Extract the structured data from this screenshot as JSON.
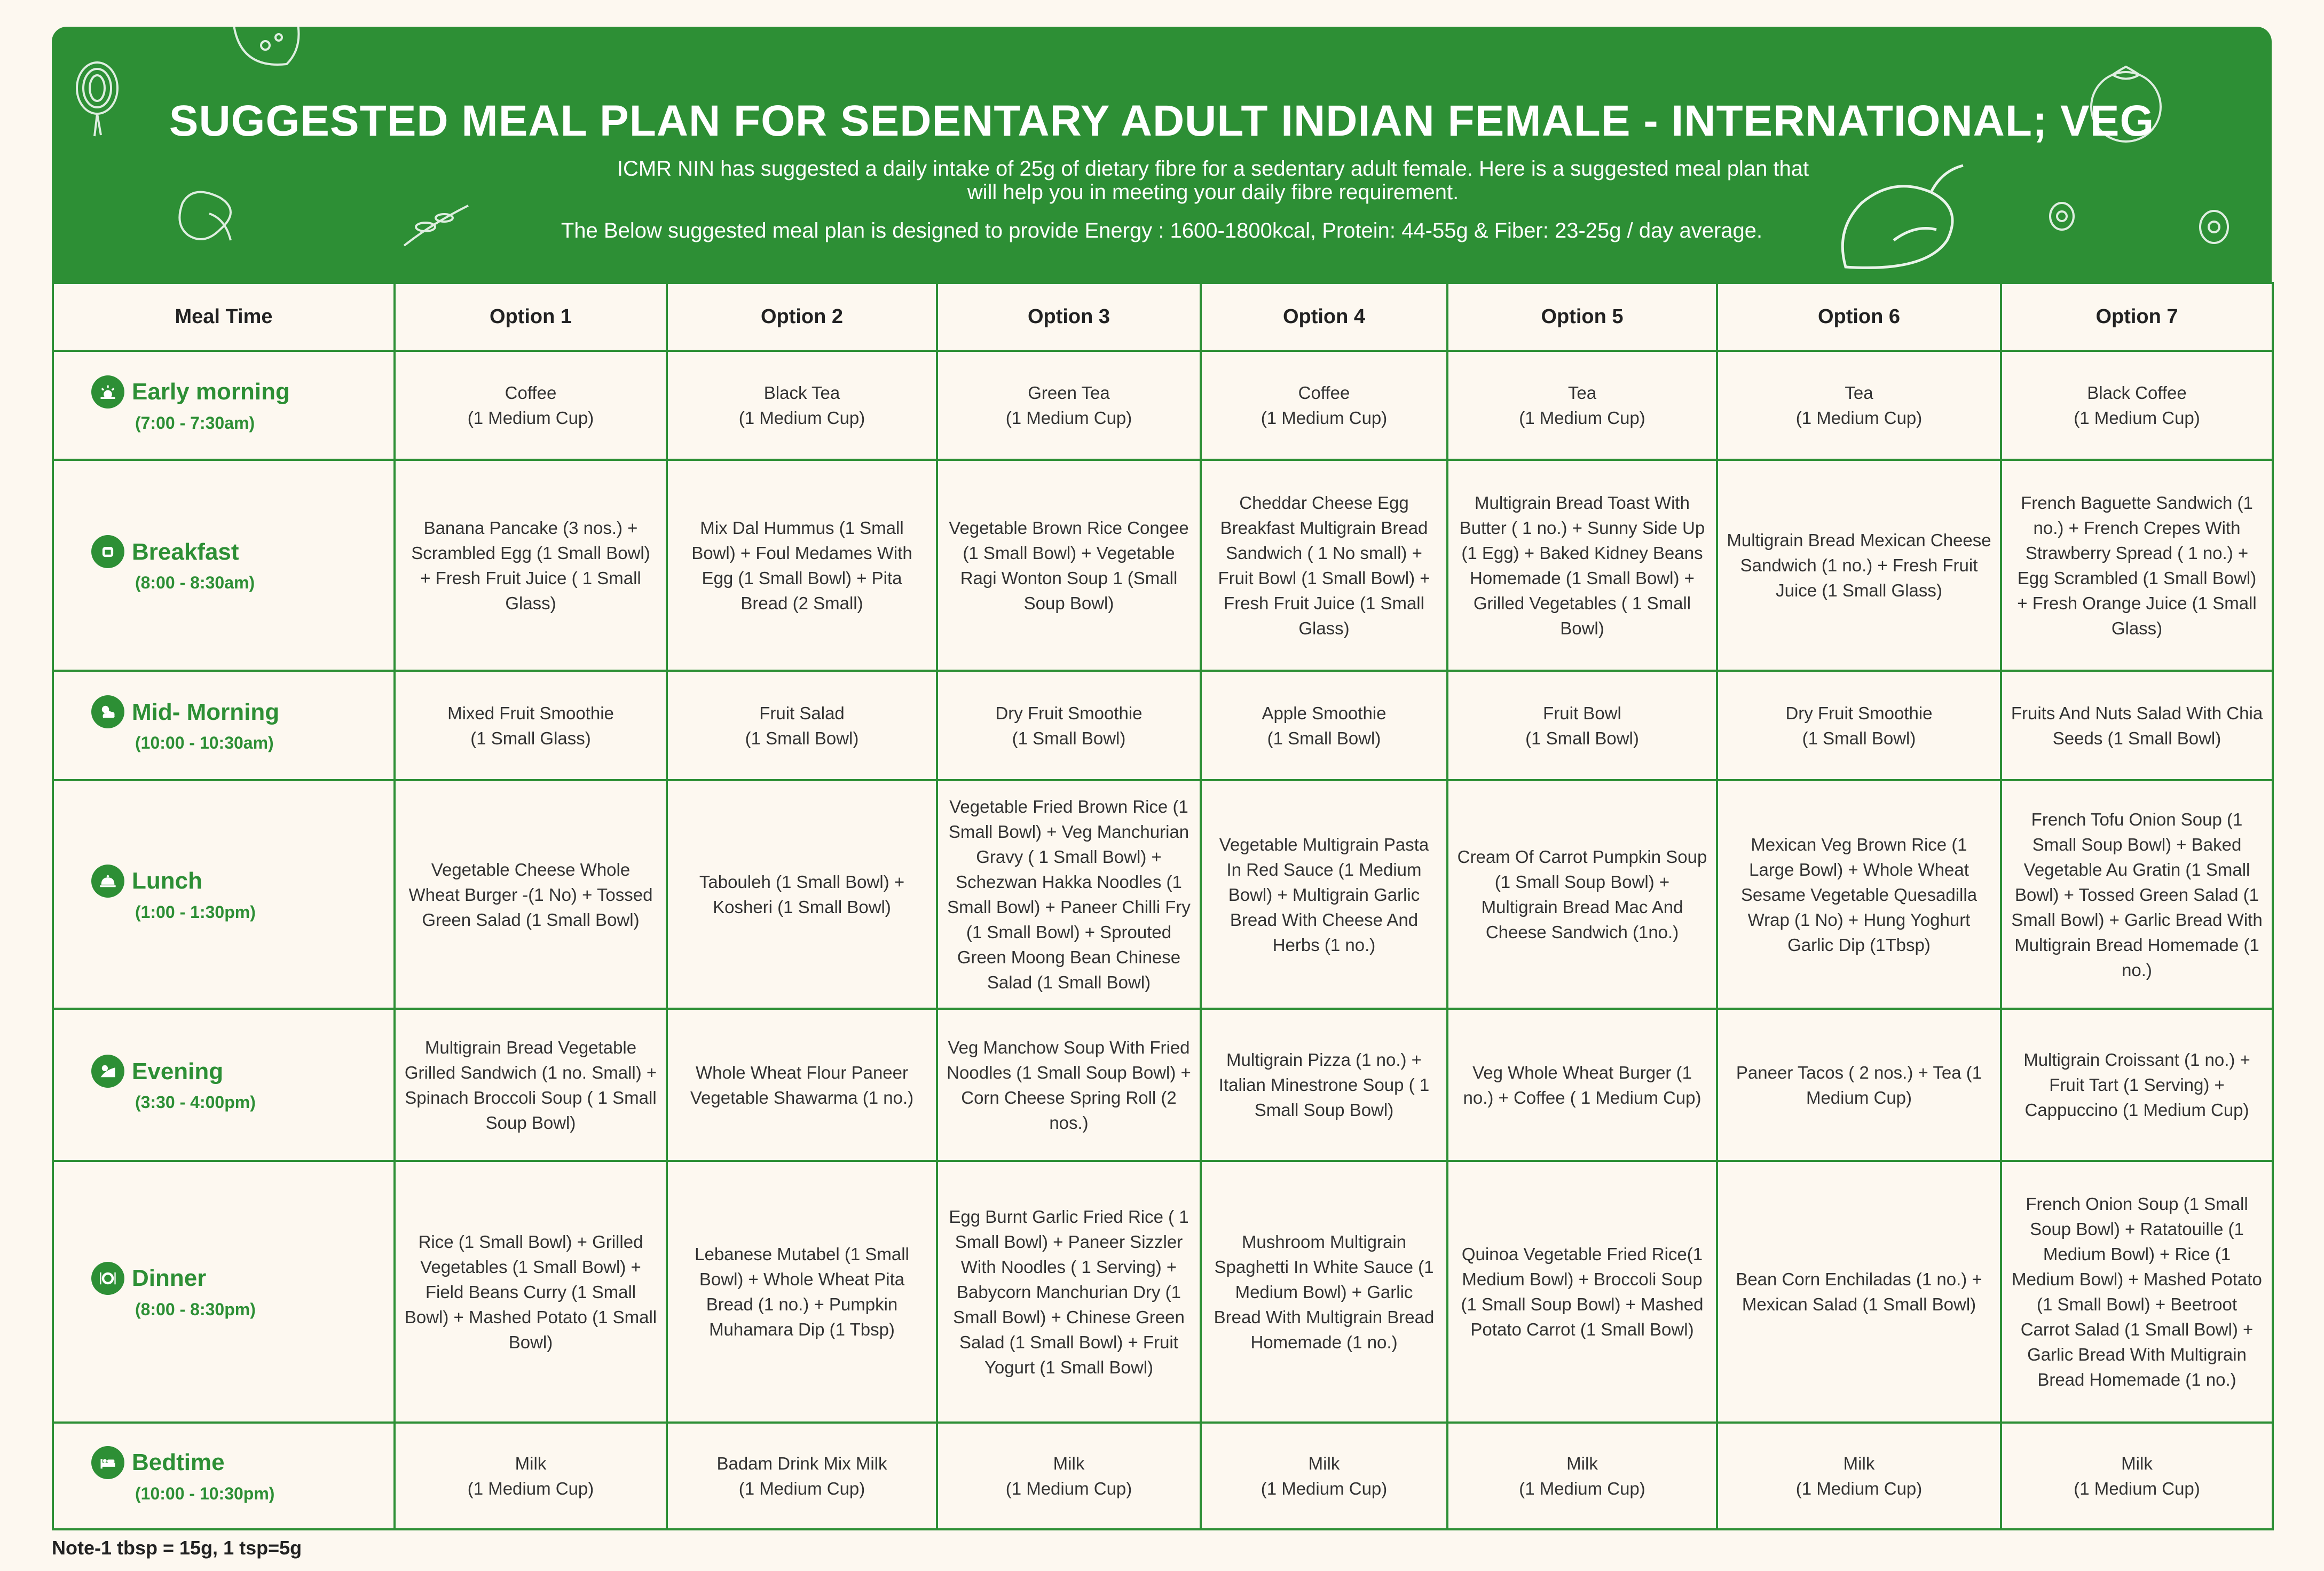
{
  "header": {
    "title": "SUGGESTED  MEAL PLAN FOR SEDENTARY ADULT INDIAN FEMALE -  INTERNATIONAL; VEG",
    "subtitle": "ICMR NIN has suggested a daily intake of 25g of dietary fibre for a sedentary adult female. Here is a suggested meal plan that will help you in meeting your daily fibre requirement.",
    "energy_note": "The Below suggested meal plan is designed to provide Energy : 1600-1800kcal, Protein: 44-55g & Fiber: 23-25g / day average."
  },
  "colors": {
    "brand_green": "#2d8f35",
    "background": "#fdf8f0"
  },
  "table": {
    "headers": [
      "Meal Time",
      "Option 1",
      "Option 2",
      "Option 3",
      "Option 4",
      "Option 5",
      "Option 6",
      "Option 7"
    ],
    "rows": [
      {
        "meal": "Early morning",
        "time": "(7:00 - 7:30am)",
        "icon": "sunrise-icon",
        "cells": [
          "Coffee\n(1 Medium Cup)",
          "Black Tea\n(1 Medium Cup)",
          "Green Tea\n(1 Medium Cup)",
          "Coffee\n(1 Medium Cup)",
          "Tea\n(1 Medium Cup)",
          "Tea\n(1 Medium Cup)",
          "Black Coffee\n(1 Medium Cup)"
        ]
      },
      {
        "meal": "Breakfast",
        "time": "(8:00 - 8:30am)",
        "icon": "toast-icon",
        "cells": [
          "Banana Pancake (3 nos.) + Scrambled Egg (1 Small Bowl) + Fresh Fruit Juice ( 1 Small Glass)",
          "Mix Dal Hummus (1 Small Bowl) +  Foul Medames With Egg (1 Small Bowl) + Pita Bread (2 Small)",
          "Vegetable Brown Rice Congee  (1 Small Bowl) + Vegetable Ragi Wonton Soup 1 (Small Soup Bowl)",
          "Cheddar Cheese Egg Breakfast Multigrain Bread Sandwich ( 1 No small) + Fruit Bowl (1 Small Bowl) + Fresh Fruit Juice (1 Small Glass)",
          "Multigrain Bread Toast With Butter ( 1 no.) + Sunny Side Up (1  Egg) + Baked Kidney Beans Homemade (1 Small Bowl) + Grilled Vegetables ( 1 Small Bowl)",
          "Multigrain Bread Mexican Cheese Sandwich (1 no.) + Fresh Fruit Juice (1 Small Glass)",
          "French Baguette Sandwich (1 no.) +  French Crepes With Strawberry Spread ( 1 no.) + Egg Scrambled (1 Small Bowl) +  Fresh Orange Juice (1 Small Glass)"
        ]
      },
      {
        "meal": "Mid- Morning",
        "time": "(10:00 - 10:30am)",
        "icon": "sun-cloud-icon",
        "cells": [
          "Mixed Fruit Smoothie\n(1 Small Glass)",
          "Fruit Salad\n(1 Small Bowl)",
          "Dry Fruit Smoothie\n(1 Small Bowl)",
          "Apple Smoothie\n(1 Small Bowl)",
          "Fruit Bowl\n(1 Small Bowl)",
          "Dry Fruit Smoothie\n(1 Small Bowl)",
          "Fruits And Nuts Salad With Chia Seeds (1 Small Bowl)"
        ]
      },
      {
        "meal": "Lunch",
        "time": "(1:00 - 1:30pm)",
        "icon": "cloche-icon",
        "cells": [
          "Vegetable Cheese Whole Wheat Burger -(1 No) + Tossed Green Salad (1 Small Bowl)",
          "Tabouleh (1 Small Bowl) + Kosheri (1 Small Bowl)",
          "Vegetable Fried Brown Rice (1 Small Bowl) + Veg Manchurian Gravy ( 1 Small Bowl) + Schezwan Hakka Noodles (1 Small Bowl) +  Paneer Chilli Fry (1 Small Bowl) +  Sprouted Green Moong Bean Chinese Salad (1 Small Bowl)",
          "Vegetable Multigrain Pasta In Red Sauce (1 Medium Bowl) + Multigrain Garlic Bread With Cheese And Herbs (1 no.)",
          "Cream Of Carrot Pumpkin Soup (1 Small Soup Bowl) + Multigrain Bread Mac And Cheese Sandwich (1no.)",
          "Mexican Veg Brown Rice (1 Large Bowl) + Whole Wheat Sesame Vegetable Quesadilla Wrap  (1 No) + Hung Yoghurt Garlic Dip (1Tbsp)",
          "French Tofu Onion Soup (1 Small Soup Bowl) + Baked Vegetable Au Gratin  (1 Small Bowl) + Tossed Green Salad (1 Small Bowl) + Garlic Bread With Multigrain Bread Homemade (1 no.)"
        ]
      },
      {
        "meal": "Evening",
        "time": "(3:30 - 4:00pm)",
        "icon": "sunset-icon",
        "cells": [
          "Multigrain Bread Vegetable Grilled Sandwich (1 no. Small) + Spinach Broccoli Soup ( 1 Small Soup Bowl)",
          "Whole Wheat Flour Paneer Vegetable Shawarma (1 no.)",
          "Veg Manchow Soup With Fried Noodles (1 Small Soup Bowl) + Corn Cheese Spring Roll (2 nos.)",
          "Multigrain Pizza (1 no.) + Italian Minestrone Soup ( 1 Small Soup Bowl)",
          "Veg Whole Wheat Burger (1 no.) + Coffee ( 1 Medium Cup)",
          "Paneer Tacos ( 2 nos.) + Tea (1 Medium Cup)",
          "Multigrain Croissant (1 no.) + Fruit Tart (1 Serving) + Cappuccino (1 Medium Cup)"
        ]
      },
      {
        "meal": "Dinner",
        "time": "(8:00 - 8:30pm)",
        "icon": "plate-icon",
        "cells": [
          "Rice (1 Small Bowl) + Grilled Vegetables (1 Small Bowl) +  Field Beans Curry (1 Small Bowl) +  Mashed Potato (1 Small Bowl)",
          "Lebanese Mutabel (1 Small Bowl) +  Whole Wheat Pita Bread (1 no.) + Pumpkin Muhamara Dip (1 Tbsp)",
          "Egg Burnt Garlic Fried Rice ( 1 Small Bowl) +  Paneer Sizzler With Noodles ( 1 Serving) + Babycorn Manchurian Dry  (1 Small Bowl) +  Chinese Green Salad (1 Small Bowl) + Fruit Yogurt (1 Small Bowl)",
          "Mushroom Multigrain Spaghetti In White Sauce (1 Medium Bowl) +  Garlic Bread With Multigrain Bread Homemade (1 no.)",
          "Quinoa Vegetable Fried Rice(1 Medium Bowl) +  Broccoli Soup (1 Small Soup Bowl) + Mashed Potato Carrot (1 Small Bowl)",
          "Bean Corn Enchiladas (1 no.) + Mexican Salad (1 Small Bowl)",
          "French Onion Soup (1 Small Soup Bowl) +  Ratatouille (1 Medium Bowl) + Rice (1 Medium Bowl) +  Mashed Potato (1 Small Bowl) + Beetroot Carrot Salad (1 Small Bowl) +  Garlic Bread With Multigrain Bread Homemade (1 no.)"
        ]
      },
      {
        "meal": "Bedtime",
        "time": "(10:00 - 10:30pm)",
        "icon": "bed-icon",
        "cells": [
          "Milk\n(1 Medium Cup)",
          "Badam Drink Mix Milk\n(1 Medium Cup)",
          "Milk\n(1 Medium Cup)",
          "Milk\n(1 Medium Cup)",
          "Milk\n(1 Medium Cup)",
          "Milk\n(1 Medium Cup)",
          "Milk\n(1 Medium Cup)"
        ]
      }
    ]
  },
  "footer": {
    "note": "Note-1 tbsp = 15g, 1 tsp=5g"
  }
}
